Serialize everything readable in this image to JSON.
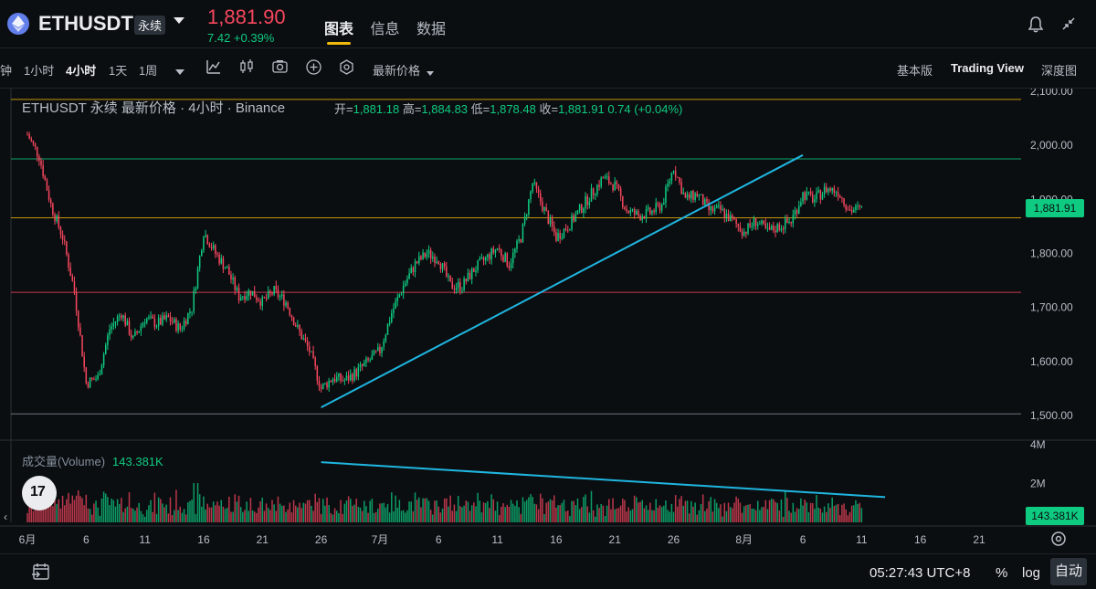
{
  "header": {
    "symbol": "ETHUSDT",
    "contract_type": "永续",
    "last_price": "1,881.90",
    "change": "7.42 +0.39%",
    "tabs": [
      "图表",
      "信息",
      "数据"
    ],
    "active_tab": "图表"
  },
  "toolbar": {
    "intervals": [
      "钟",
      "1小时",
      "4小时",
      "1天",
      "1周"
    ],
    "active_interval": "4小时",
    "price_type": "最新价格",
    "views": [
      "基本版",
      "Trading View",
      "深度图"
    ],
    "active_view": "Trading View"
  },
  "legend": {
    "title": "ETHUSDT 永续 最新价格 · 4小时 · Binance",
    "open_label": "开=",
    "open": "1,881.18",
    "high_label": "高=",
    "high": "1,884.83",
    "low_label": "低=",
    "low": "1,878.48",
    "close_label": "收=",
    "close": "1,881.91",
    "change": "0.74 (+0.04%)"
  },
  "volume": {
    "label": "成交量(Volume)",
    "value": "143.381K",
    "axis_labels": [
      "4M",
      "2M"
    ]
  },
  "price_tag": "1,881.91",
  "volume_tag": "143.381K",
  "footer": {
    "time": "05:27:43 UTC+8",
    "percent": "%",
    "log": "log",
    "auto": "自动"
  },
  "colors": {
    "up": "#0ecb81",
    "down": "#f6465d",
    "trendline": "#1fb6e0",
    "accent": "#f0b90b"
  },
  "chart_data": {
    "type": "candlestick",
    "interval": "4小时",
    "y_ticks": [
      2100,
      2000,
      1900,
      1800,
      1700,
      1600,
      1500
    ],
    "y_tick_labels": [
      "2,100.00",
      "2,000.00",
      "1,900.00",
      "1,800.00",
      "1,700.00",
      "1,600.00",
      "1,500.00"
    ],
    "x_tick_labels": [
      "6月",
      "6",
      "11",
      "16",
      "21",
      "26",
      "7月",
      "6",
      "11",
      "16",
      "21",
      "26",
      "8月",
      "6",
      "11",
      "16",
      "21"
    ],
    "horizontal_levels": [
      {
        "price": 2085,
        "color": "#f0b90b"
      },
      {
        "price": 1975,
        "color": "#0ecb81"
      },
      {
        "price": 1866,
        "color": "#f0b90b"
      },
      {
        "price": 1728,
        "color": "#f6465d"
      },
      {
        "price": 1503,
        "color": "#848e9c"
      }
    ],
    "price_path": [
      [
        "2023-06-01",
        2020
      ],
      [
        "2023-06-02",
        1980
      ],
      [
        "2023-06-03",
        1890
      ],
      [
        "2023-06-04",
        1830
      ],
      [
        "2023-06-05",
        1730
      ],
      [
        "2023-06-06",
        1560
      ],
      [
        "2023-06-07",
        1570
      ],
      [
        "2023-06-08",
        1660
      ],
      [
        "2023-06-09",
        1690
      ],
      [
        "2023-06-10",
        1640
      ],
      [
        "2023-06-11",
        1680
      ],
      [
        "2023-06-12",
        1670
      ],
      [
        "2023-06-13",
        1680
      ],
      [
        "2023-06-14",
        1660
      ],
      [
        "2023-06-15",
        1700
      ],
      [
        "2023-06-16",
        1840
      ],
      [
        "2023-06-17",
        1800
      ],
      [
        "2023-06-18",
        1770
      ],
      [
        "2023-06-19",
        1720
      ],
      [
        "2023-06-20",
        1730
      ],
      [
        "2023-06-21",
        1710
      ],
      [
        "2023-06-22",
        1730
      ],
      [
        "2023-06-23",
        1710
      ],
      [
        "2023-06-24",
        1660
      ],
      [
        "2023-06-25",
        1620
      ],
      [
        "2023-06-26",
        1550
      ],
      [
        "2023-06-27",
        1570
      ],
      [
        "2023-06-28",
        1565
      ],
      [
        "2023-06-29",
        1580
      ],
      [
        "2023-06-30",
        1600
      ],
      [
        "2023-07-01",
        1620
      ],
      [
        "2023-07-02",
        1690
      ],
      [
        "2023-07-03",
        1740
      ],
      [
        "2023-07-04",
        1780
      ],
      [
        "2023-07-05",
        1800
      ],
      [
        "2023-07-06",
        1790
      ],
      [
        "2023-07-07",
        1740
      ],
      [
        "2023-07-08",
        1740
      ],
      [
        "2023-07-09",
        1770
      ],
      [
        "2023-07-10",
        1790
      ],
      [
        "2023-07-11",
        1810
      ],
      [
        "2023-07-12",
        1780
      ],
      [
        "2023-07-13",
        1830
      ],
      [
        "2023-07-14",
        1930
      ],
      [
        "2023-07-15",
        1880
      ],
      [
        "2023-07-16",
        1830
      ],
      [
        "2023-07-17",
        1850
      ],
      [
        "2023-07-18",
        1880
      ],
      [
        "2023-07-19",
        1910
      ],
      [
        "2023-07-20",
        1940
      ],
      [
        "2023-07-21",
        1925
      ],
      [
        "2023-07-22",
        1880
      ],
      [
        "2023-07-23",
        1870
      ],
      [
        "2023-07-24",
        1875
      ],
      [
        "2023-07-25",
        1890
      ],
      [
        "2023-07-26",
        1960
      ],
      [
        "2023-07-27",
        1900
      ],
      [
        "2023-07-28",
        1910
      ],
      [
        "2023-07-29",
        1880
      ],
      [
        "2023-07-30",
        1880
      ],
      [
        "2023-07-31",
        1860
      ],
      [
        "2023-08-01",
        1840
      ],
      [
        "2023-08-02",
        1860
      ],
      [
        "2023-08-03",
        1840
      ],
      [
        "2023-08-04",
        1850
      ],
      [
        "2023-08-05",
        1860
      ],
      [
        "2023-08-06",
        1910
      ],
      [
        "2023-08-07",
        1900
      ],
      [
        "2023-08-08",
        1920
      ],
      [
        "2023-08-09",
        1915
      ],
      [
        "2023-08-10",
        1880
      ],
      [
        "2023-08-11",
        1882
      ]
    ],
    "trendlines": [
      {
        "from": [
          "2023-06-26",
          1515
        ],
        "to": [
          "2023-08-06",
          1982
        ],
        "pane": "price"
      },
      {
        "from": [
          "2023-06-26",
          3.1
        ],
        "to": [
          "2023-08-13",
          1.3
        ],
        "pane": "volume",
        "unit": "M"
      }
    ]
  }
}
